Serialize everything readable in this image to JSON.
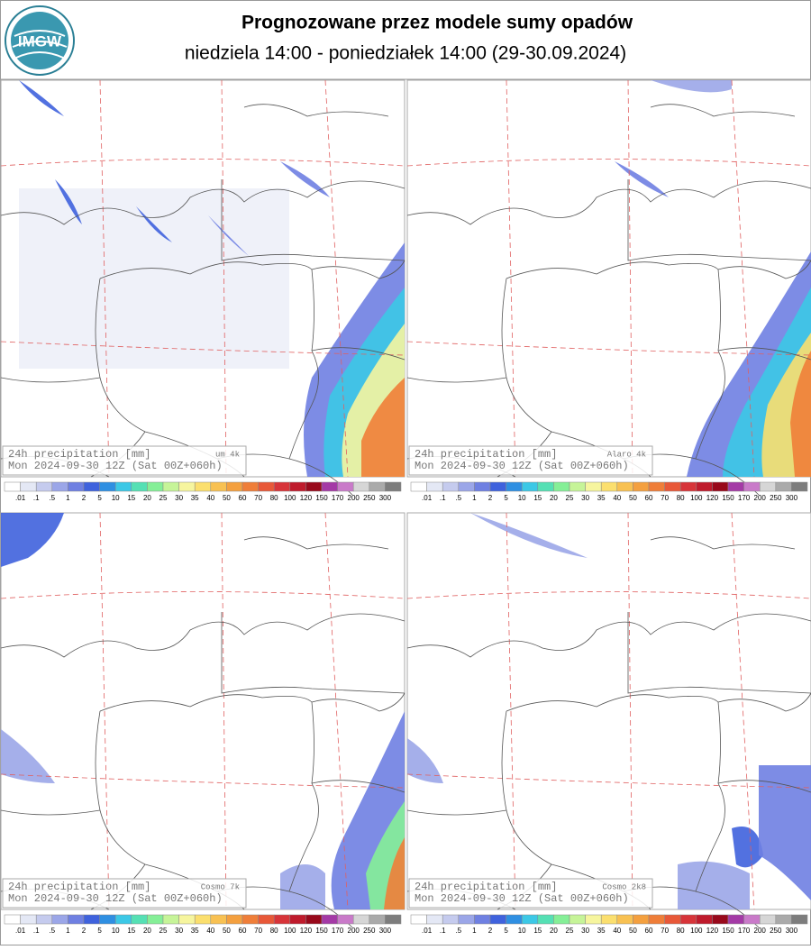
{
  "header": {
    "logo": "IMGW",
    "title": "Prognozowane przez modele sumy opadów",
    "subtitle": "niedziela 14:00 - poniedziałek 14:00 (29-30.09.2024)"
  },
  "legend": {
    "labels": [
      ".01",
      ".1",
      ".5",
      "1",
      "2",
      "5",
      "10",
      "15",
      "20",
      "25",
      "30",
      "35",
      "40",
      "50",
      "60",
      "70",
      "80",
      "100",
      "120",
      "150",
      "170",
      "200",
      "250",
      "300"
    ],
    "colors": [
      "#ffffff",
      "#e4e8f5",
      "#c5cbee",
      "#9ba6e8",
      "#6f80e2",
      "#3f62dd",
      "#2f8fe2",
      "#3cc8e6",
      "#55e0b4",
      "#85ef97",
      "#c6f498",
      "#f6f59e",
      "#fbdf6e",
      "#f8c152",
      "#f4a03f",
      "#ef7e39",
      "#e85838",
      "#d73439",
      "#bf1b2c",
      "#98091b",
      "#a43aa6",
      "#c97ac9",
      "#d6d6d6",
      "#aaaaaa",
      "#7d7d7d"
    ]
  },
  "panels": [
    {
      "label": "24h precipitation [mm]",
      "model": "um 4k",
      "run": "Mon 2024-09-30 12Z (Sat 00Z+060h)"
    },
    {
      "label": "24h precipitation [mm]",
      "model": "Alaro 4k",
      "run": "Mon 2024-09-30 12Z (Sat 00Z+060h)"
    },
    {
      "label": "24h precipitation [mm]",
      "model": "Cosmo 7k",
      "run": "Mon 2024-09-30 12Z (Sat 00Z+060h)"
    },
    {
      "label": "24h precipitation [mm]",
      "model": "Cosmo 2k8",
      "run": "Mon 2024-09-30 12Z (Sat 00Z+060h)"
    }
  ]
}
